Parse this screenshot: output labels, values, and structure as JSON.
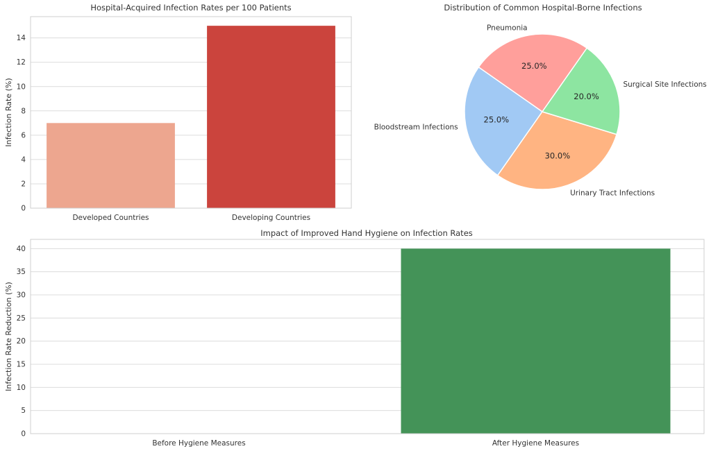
{
  "chart_data": [
    {
      "type": "bar",
      "title": "Hospital-Acquired Infection Rates per 100 Patients",
      "xlabel": "",
      "ylabel": "Infection Rate (%)",
      "categories": [
        "Developed Countries",
        "Developing Countries"
      ],
      "values": [
        7,
        15
      ],
      "colors": [
        "#eda68f",
        "#cb443d"
      ],
      "yticks": [
        0,
        2,
        4,
        6,
        8,
        10,
        12,
        14
      ],
      "ylim": [
        0,
        15.75
      ],
      "grid": true
    },
    {
      "type": "pie",
      "title": "Distribution of Common Hospital-Borne Infections",
      "labels": [
        "Pneumonia",
        "Bloodstream Infections",
        "Urinary Tract Infections",
        "Surgical Site Infections"
      ],
      "values": [
        25,
        25,
        30,
        20
      ],
      "pct_labels": [
        "25.0%",
        "25.0%",
        "30.0%",
        "20.0%"
      ],
      "colors": [
        "#ff9f9b",
        "#a1c9f4",
        "#ffb482",
        "#8de5a1"
      ],
      "start_angle_deg": 55
    },
    {
      "type": "bar",
      "title": "Impact of Improved Hand Hygiene on Infection Rates",
      "xlabel": "",
      "ylabel": "Infection Rate Reduction (%)",
      "categories": [
        "Before Hygiene Measures",
        "After Hygiene Measures"
      ],
      "values": [
        0,
        40
      ],
      "colors": [
        "#4a9c5f",
        "#449358"
      ],
      "yticks": [
        0,
        5,
        10,
        15,
        20,
        25,
        30,
        35,
        40
      ],
      "ylim": [
        0,
        42
      ],
      "grid": true
    }
  ]
}
